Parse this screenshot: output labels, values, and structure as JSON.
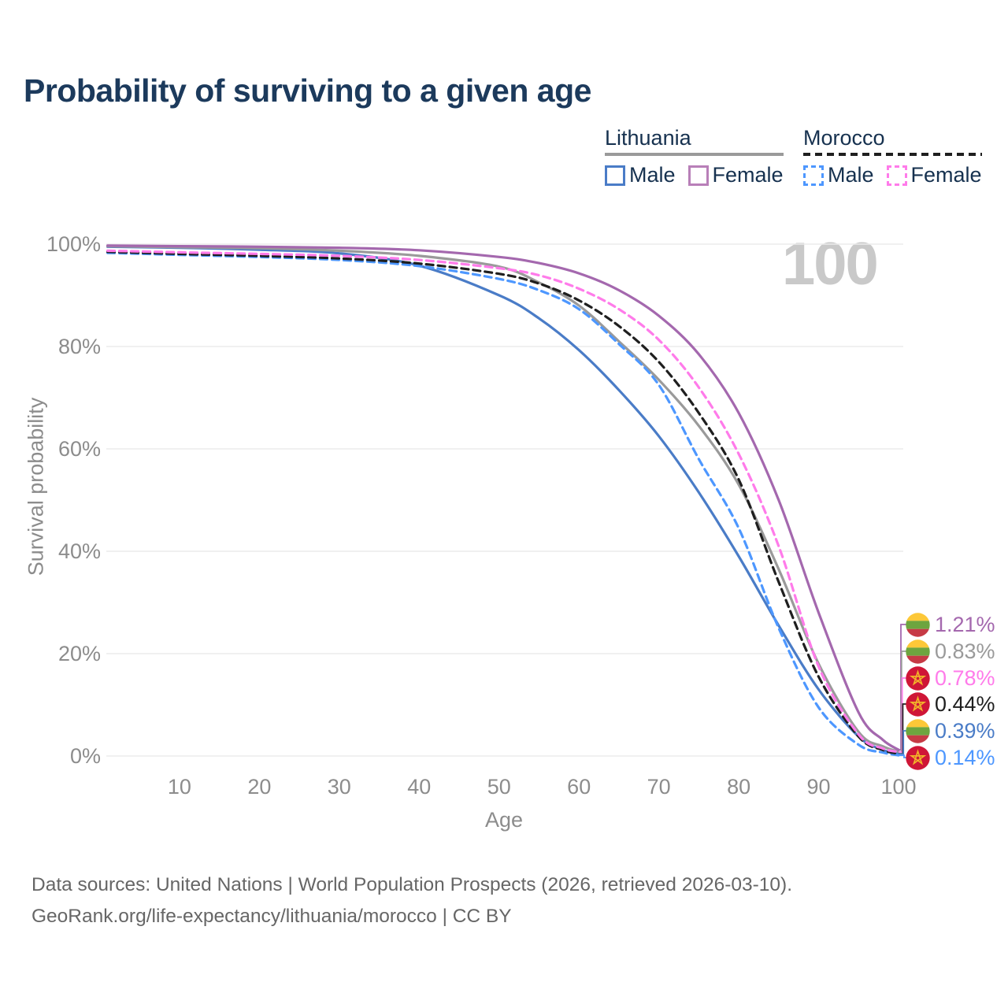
{
  "title": "Probability of surviving to a given age",
  "watermark": "100",
  "legend": {
    "groups": [
      {
        "name": "Lithuania",
        "line_style": "solid",
        "items": [
          {
            "label": "Male",
            "color": "#4a7cc7"
          },
          {
            "label": "Female",
            "color": "#b87fb8"
          }
        ]
      },
      {
        "name": "Morocco",
        "line_style": "dashed",
        "items": [
          {
            "label": "Male",
            "color": "#4d97ff"
          },
          {
            "label": "Female",
            "color": "#ff7bea"
          }
        ]
      }
    ]
  },
  "flags": {
    "lithuania": {
      "stripes": [
        "#fdc838",
        "#6da53f",
        "#c63a45"
      ]
    },
    "morocco": {
      "bg": "#cf1637",
      "star": "#f2b32a"
    }
  },
  "chart_data": {
    "type": "line",
    "title": "Probability of surviving to a given age",
    "xlabel": "Age",
    "ylabel": "Survival probability",
    "xlim": [
      1,
      100
    ],
    "ylim": [
      0,
      100
    ],
    "grid": "horizontal-only",
    "legend_position": "top-right",
    "x_ticks": [
      10,
      20,
      30,
      40,
      50,
      60,
      70,
      80,
      90,
      100
    ],
    "y_tick_values": [
      0,
      20,
      40,
      60,
      80,
      100
    ],
    "y_tick_labels": [
      "0%",
      "20%",
      "40%",
      "60%",
      "80%",
      "100%"
    ],
    "x": [
      1,
      10,
      20,
      30,
      40,
      50,
      55,
      60,
      65,
      70,
      75,
      80,
      85,
      90,
      95,
      98,
      100
    ],
    "series": [
      {
        "name": "Lithuania Female",
        "country": "Lithuania",
        "sex": "Female",
        "color": "#a468ae",
        "dash": false,
        "flag": "lithuania",
        "end_label": "1.21%",
        "values": [
          99.7,
          99.6,
          99.5,
          99.3,
          98.8,
          97.5,
          96.3,
          94.3,
          91.0,
          86.0,
          78.5,
          67.0,
          50.0,
          28.0,
          8.5,
          3.2,
          1.21
        ]
      },
      {
        "name": "Lithuania Both sexes",
        "country": "Lithuania",
        "sex": "Both",
        "color": "#9a9a9a",
        "dash": false,
        "flag": "lithuania",
        "end_label": "0.83%",
        "values": [
          99.6,
          99.4,
          99.2,
          98.7,
          97.7,
          95.6,
          92.5,
          88.0,
          81.0,
          73.5,
          64.5,
          53.0,
          36.5,
          18.0,
          4.7,
          1.9,
          0.83
        ]
      },
      {
        "name": "Morocco Female",
        "country": "Morocco",
        "sex": "Female",
        "color": "#ff7bea",
        "dash": true,
        "flag": "morocco",
        "end_label": "0.78%",
        "values": [
          98.7,
          98.4,
          98.1,
          97.7,
          96.9,
          95.3,
          93.9,
          91.3,
          87.3,
          81.3,
          72.0,
          59.0,
          41.0,
          17.5,
          4.2,
          1.5,
          0.78
        ]
      },
      {
        "name": "Morocco Both sexes",
        "country": "Morocco",
        "sex": "Both",
        "color": "#1f1f1f",
        "dash": true,
        "flag": "morocco",
        "end_label": "0.44%",
        "values": [
          98.5,
          98.1,
          97.7,
          97.2,
          96.2,
          94.2,
          92.3,
          89.0,
          84.0,
          77.0,
          67.0,
          54.0,
          34.0,
          15.5,
          3.8,
          1.2,
          0.44
        ]
      },
      {
        "name": "Lithuania Male",
        "country": "Lithuania",
        "sex": "Male",
        "color": "#4a7cc7",
        "dash": false,
        "flag": "lithuania",
        "end_label": "0.39%",
        "values": [
          99.5,
          99.3,
          98.9,
          98.2,
          95.8,
          90.0,
          85.5,
          79.3,
          71.5,
          62.5,
          51.5,
          39.0,
          25.5,
          13.0,
          3.8,
          1.2,
          0.39
        ]
      },
      {
        "name": "Morocco Male",
        "country": "Morocco",
        "sex": "Male",
        "color": "#4d97ff",
        "dash": true,
        "flag": "morocco",
        "end_label": "0.14%",
        "values": [
          98.3,
          97.9,
          97.5,
          96.9,
          95.7,
          93.2,
          91.0,
          87.3,
          80.5,
          72.5,
          58.0,
          44.5,
          25.0,
          9.5,
          2.2,
          0.7,
          0.14
        ]
      }
    ],
    "annotations": {
      "age_counter": "100"
    }
  },
  "footer": {
    "line1": "Data sources: United Nations | World Population Prospects (2026, retrieved 2026-03-10).",
    "line2": "GeoRank.org/life-expectancy/lithuania/morocco | CC BY"
  }
}
